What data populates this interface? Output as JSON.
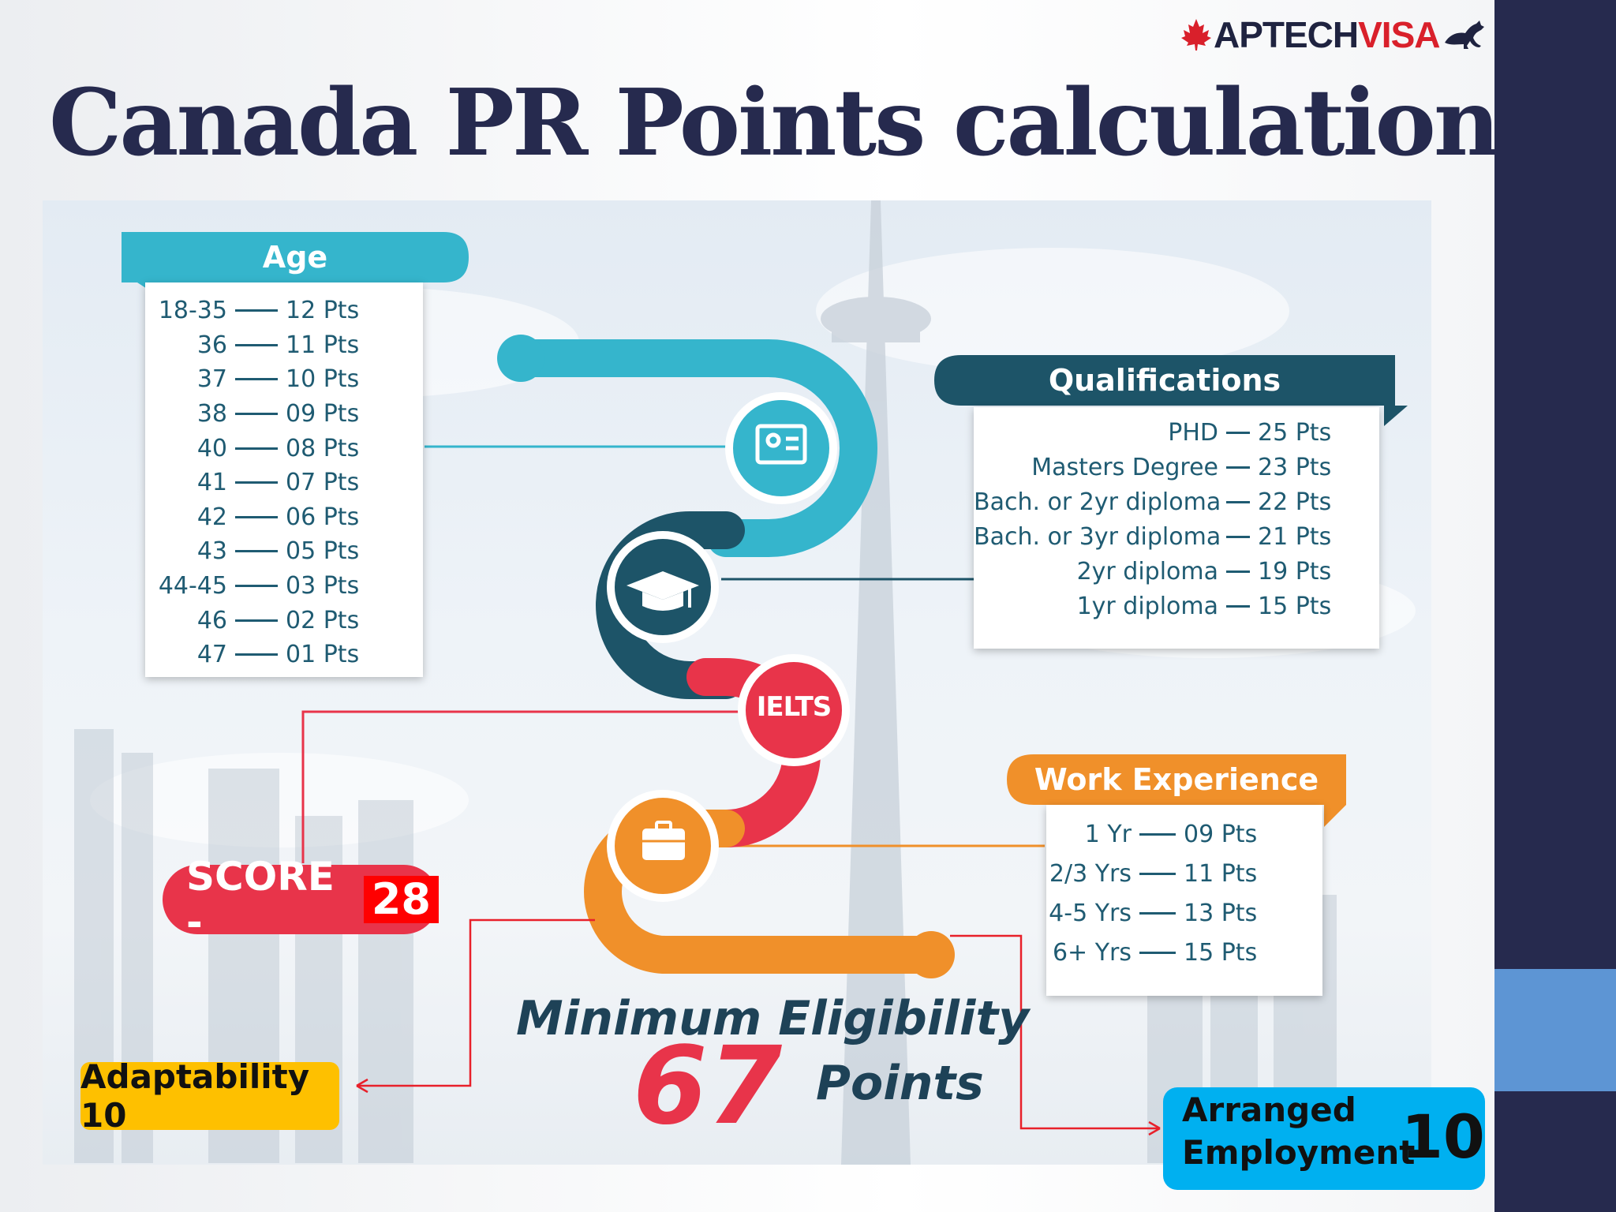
{
  "logo": {
    "part1": "APTECH",
    "part2": "VISA"
  },
  "title": "Canada PR Points calculation",
  "age": {
    "header": "Age",
    "rows": [
      {
        "label": "18-35",
        "points": "12 Pts"
      },
      {
        "label": "36",
        "points": "11 Pts"
      },
      {
        "label": "37",
        "points": "10 Pts"
      },
      {
        "label": "38",
        "points": "09 Pts"
      },
      {
        "label": "40",
        "points": "08 Pts"
      },
      {
        "label": "41",
        "points": "07 Pts"
      },
      {
        "label": "42",
        "points": "06 Pts"
      },
      {
        "label": "43",
        "points": "05 Pts"
      },
      {
        "label": "44-45",
        "points": "03 Pts"
      },
      {
        "label": "46",
        "points": "02 Pts"
      },
      {
        "label": "47",
        "points": "01 Pts"
      }
    ]
  },
  "qualifications": {
    "header": "Qualifications",
    "rows": [
      {
        "label": "PHD",
        "points": "25 Pts"
      },
      {
        "label": "Masters Degree",
        "points": "23 Pts"
      },
      {
        "label": "Bach. or 2yr diploma",
        "points": "22 Pts"
      },
      {
        "label": "Bach. or 3yr diploma",
        "points": "21 Pts"
      },
      {
        "label": "2yr diploma",
        "points": "19 Pts"
      },
      {
        "label": "1yr diploma",
        "points": "15 Pts"
      }
    ]
  },
  "work": {
    "header": "Work Experience",
    "rows": [
      {
        "label": "1 Yr",
        "points": "09 Pts"
      },
      {
        "label": "2/3 Yrs",
        "points": "11 Pts"
      },
      {
        "label": "4-5 Yrs",
        "points": "13 Pts"
      },
      {
        "label": "6+ Yrs",
        "points": "15 Pts"
      }
    ]
  },
  "ielts_label": "IELTS",
  "score": {
    "label": "SCORE -",
    "value": "28"
  },
  "minimum": {
    "line1": "Minimum Eligibility",
    "number": "67",
    "unit": "Points"
  },
  "adaptability": "Adaptability 10",
  "arranged": {
    "line1": "Arranged",
    "line2": "Employment",
    "value": "10"
  },
  "colors": {
    "navy": "#262a4e",
    "teal": "#35b5cc",
    "darkTeal": "#1d5468",
    "red": "#e8344a",
    "orange": "#f0902a",
    "yellow": "#fec000",
    "cyan": "#00b0f0"
  }
}
